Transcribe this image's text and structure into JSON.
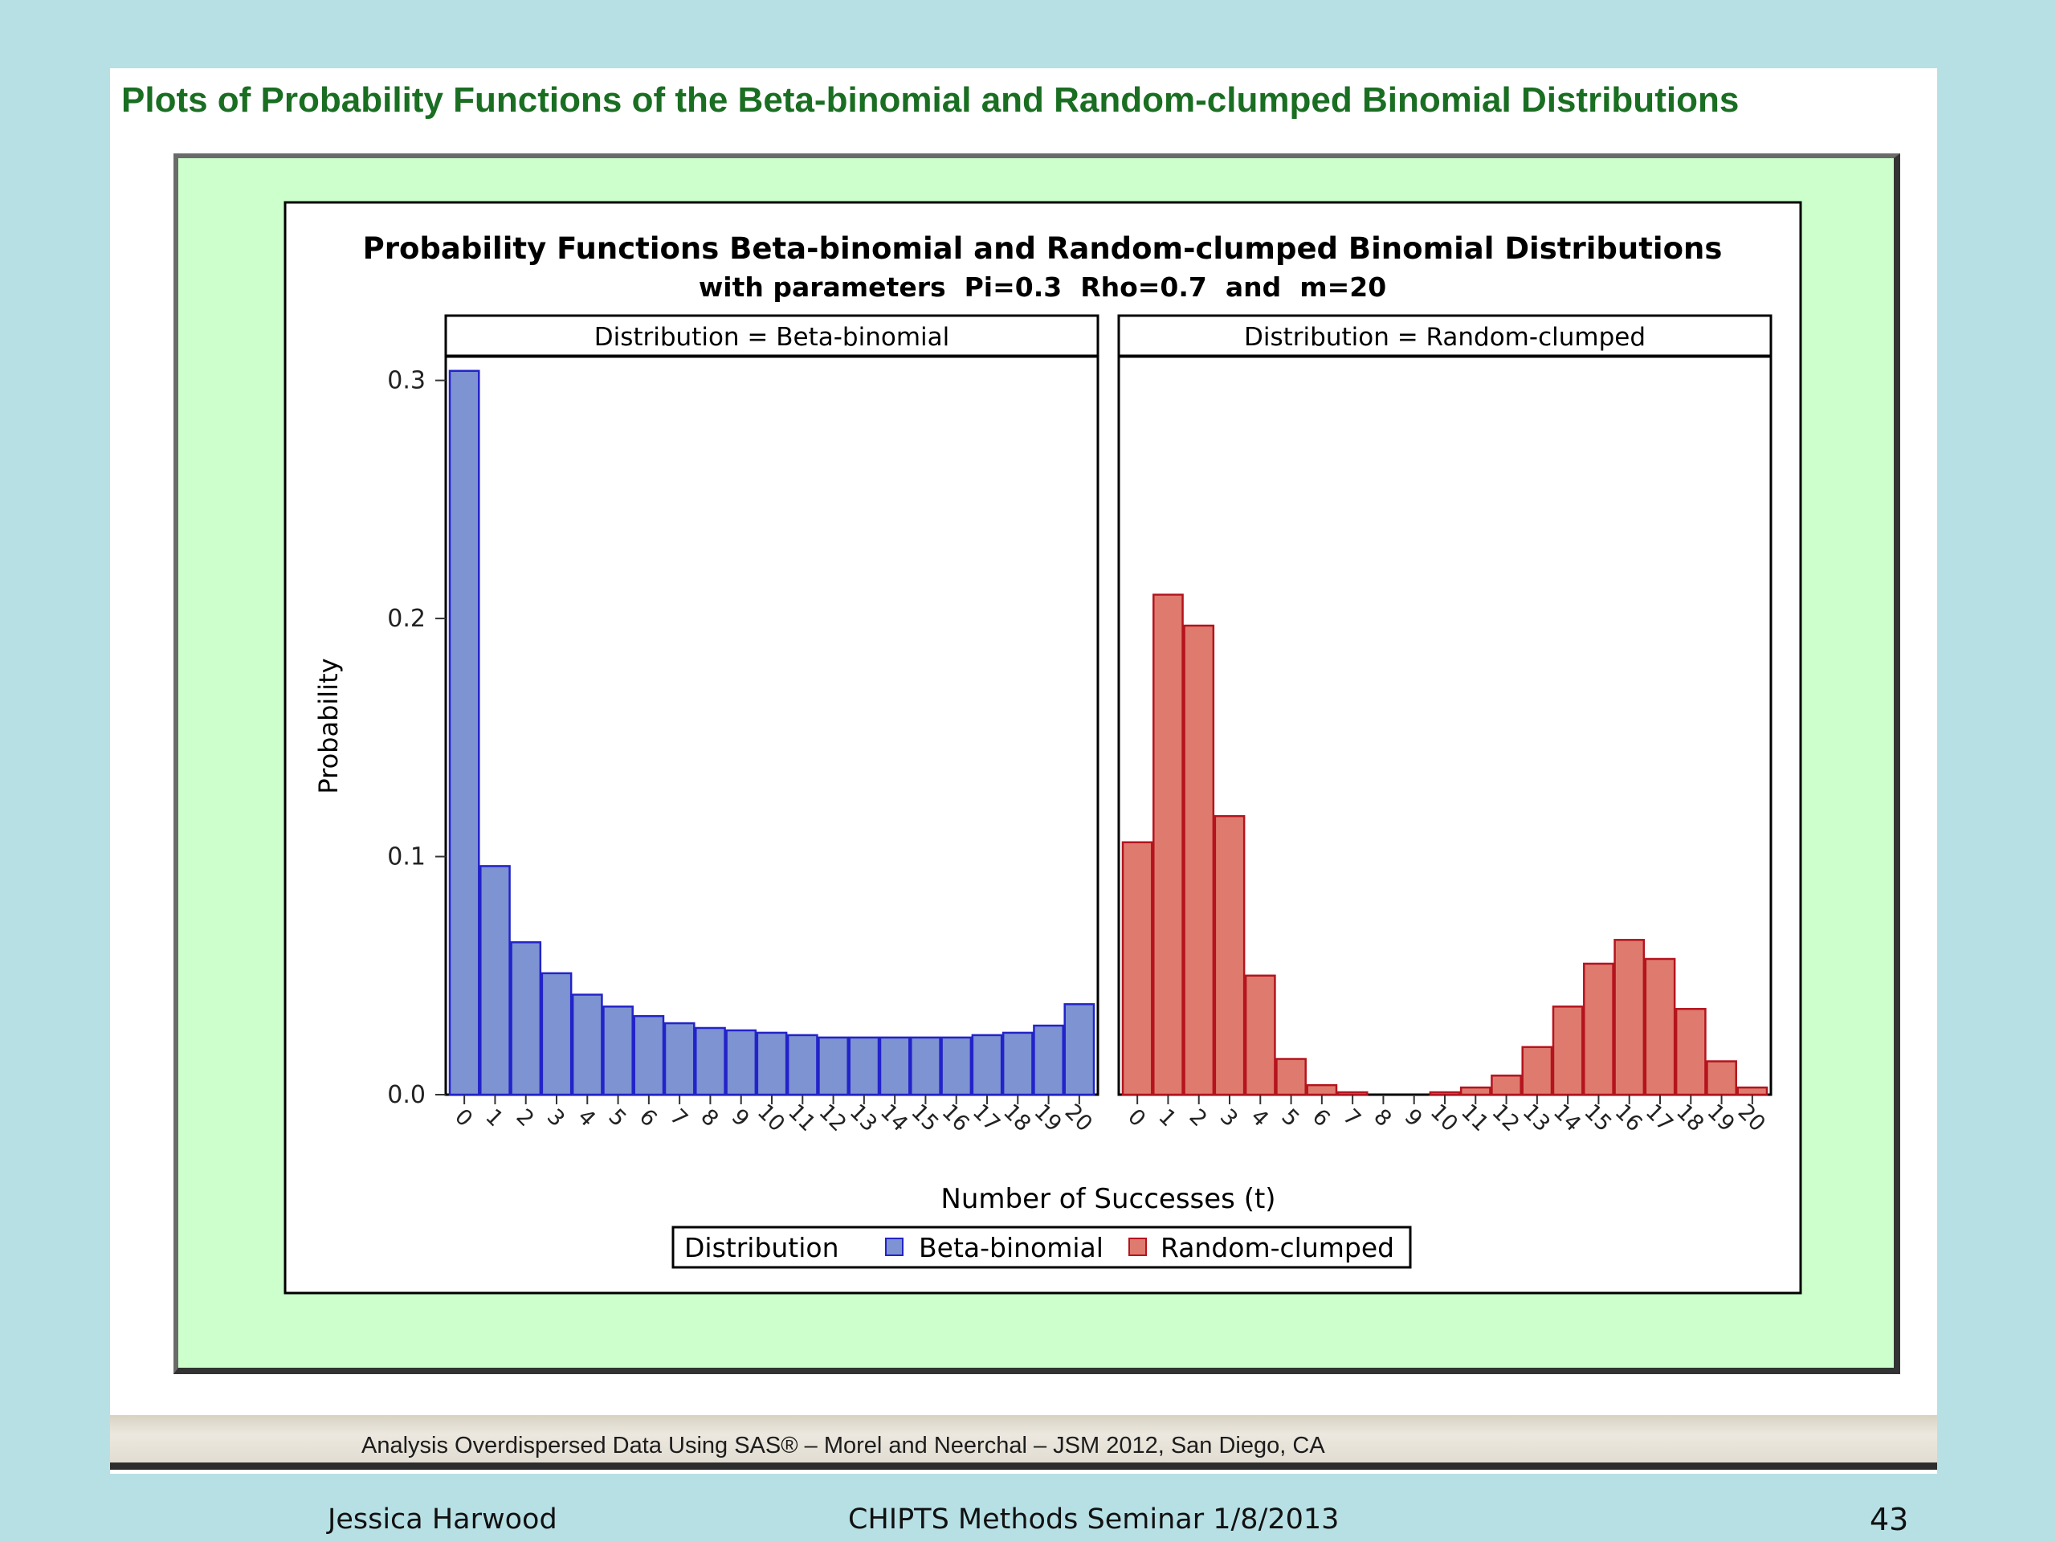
{
  "slide": {
    "title": "Plots of Probability Functions of the Beta-binomial and Random-clumped Binomial Distributions",
    "banner_text": "Analysis Overdispersed Data Using SAS® – Morel and Neerchal – JSM 2012, San Diego, CA",
    "author": "Jessica Harwood",
    "event": "CHIPTS Methods Seminar 1/8/2013",
    "page_number": "43"
  },
  "colors": {
    "title_green": "#1a6e22",
    "frame_green": "#ccffcc",
    "beta_fill": "#7d93d2",
    "beta_stroke": "#2323c9",
    "clumped_fill": "#df7b6e",
    "clumped_stroke": "#b4141e"
  },
  "chart_data": {
    "type": "bar",
    "title": "Probability Functions Beta-binomial and Random-clumped Binomial Distributions",
    "subtitle": "with parameters  Pi=0.3  Rho=0.7  and  m=20",
    "xlabel": "Number of Successes (t)",
    "ylabel": "Probability",
    "ylim": [
      0,
      0.31
    ],
    "yticks": [
      "0.0",
      "0.1",
      "0.2",
      "0.3"
    ],
    "categories": [
      "0",
      "1",
      "2",
      "3",
      "4",
      "5",
      "6",
      "7",
      "8",
      "9",
      "10",
      "11",
      "12",
      "13",
      "14",
      "15",
      "16",
      "17",
      "18",
      "19",
      "20"
    ],
    "legend": {
      "title": "Distribution",
      "position": "bottom",
      "entries": [
        "Beta-binomial",
        "Random-clumped"
      ]
    },
    "panels": [
      {
        "label": "Distribution = Beta-binomial",
        "series": "Beta-binomial",
        "values": [
          0.304,
          0.096,
          0.064,
          0.051,
          0.042,
          0.037,
          0.033,
          0.03,
          0.028,
          0.027,
          0.026,
          0.025,
          0.024,
          0.024,
          0.024,
          0.024,
          0.024,
          0.025,
          0.026,
          0.029,
          0.038
        ]
      },
      {
        "label": "Distribution = Random-clumped",
        "series": "Random-clumped",
        "values": [
          0.106,
          0.21,
          0.197,
          0.117,
          0.05,
          0.015,
          0.004,
          0.001,
          0.0,
          0.0,
          0.001,
          0.003,
          0.008,
          0.02,
          0.037,
          0.055,
          0.065,
          0.057,
          0.036,
          0.014,
          0.003
        ]
      }
    ]
  }
}
